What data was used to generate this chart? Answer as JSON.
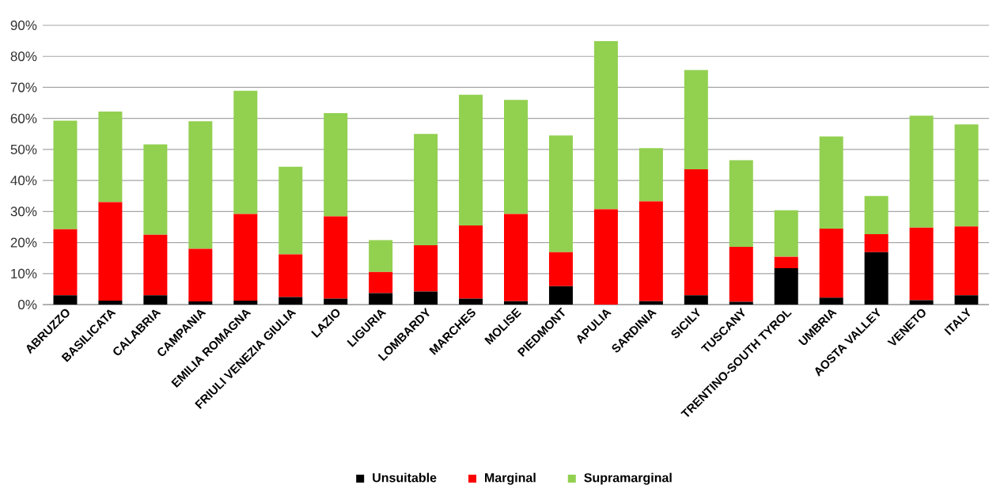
{
  "chart_data": {
    "type": "bar",
    "stacked": true,
    "categories": [
      "ABRUZZO",
      "BASILICATA",
      "CALABRIA",
      "CAMPANIA",
      "EMILIA ROMAGNA",
      "FRIULI VENEZIA GIULIA",
      "LAZIO",
      "LIGURIA",
      "LOMBARDY",
      "MARCHES",
      "MOLISE",
      "PIEDMONT",
      "APULIA",
      "SARDINIA",
      "SICILY",
      "TUSCANY",
      "TRENTINO-SOUTH TYROL",
      "UMBRIA",
      "AOSTA VALLEY",
      "VENETO",
      "ITALY"
    ],
    "series": [
      {
        "name": "Unsuitable",
        "color": "#000000",
        "values": [
          3,
          1.3,
          3,
          1,
          1.3,
          2.4,
          1.9,
          3.7,
          4.2,
          1.9,
          1.1,
          5.9,
          0,
          1.1,
          3,
          0.9,
          11.7,
          2.2,
          16.9,
          1.4,
          3
        ]
      },
      {
        "name": "Marginal",
        "color": "#ff0000",
        "values": [
          21.3,
          31.7,
          19.5,
          17,
          27.9,
          13.8,
          26.5,
          6.8,
          14.9,
          23.6,
          28.1,
          11,
          30.7,
          32.2,
          40.6,
          17.7,
          3.7,
          22.3,
          5.8,
          23.4,
          22.2
        ]
      },
      {
        "name": "Supramarginal",
        "color": "#92d050",
        "values": [
          35,
          29.2,
          29.1,
          41.1,
          39.7,
          28.2,
          33.3,
          10.3,
          35.9,
          42.1,
          36.8,
          37.6,
          54.2,
          17.1,
          32,
          27.9,
          15,
          29.7,
          12.3,
          36.1,
          32.9
        ]
      }
    ],
    "ylim": [
      0,
      90
    ],
    "yticks": [
      {
        "value": 0,
        "label": "0%"
      },
      {
        "value": 10,
        "label": "10%"
      },
      {
        "value": 20,
        "label": "20%"
      },
      {
        "value": 30,
        "label": "30%"
      },
      {
        "value": 40,
        "label": "40%"
      },
      {
        "value": 50,
        "label": "50%"
      },
      {
        "value": 60,
        "label": "60%"
      },
      {
        "value": 70,
        "label": "70%"
      },
      {
        "value": 80,
        "label": "80%"
      },
      {
        "value": 90,
        "label": "90%"
      }
    ],
    "grid": "y",
    "legend": "bottom"
  }
}
